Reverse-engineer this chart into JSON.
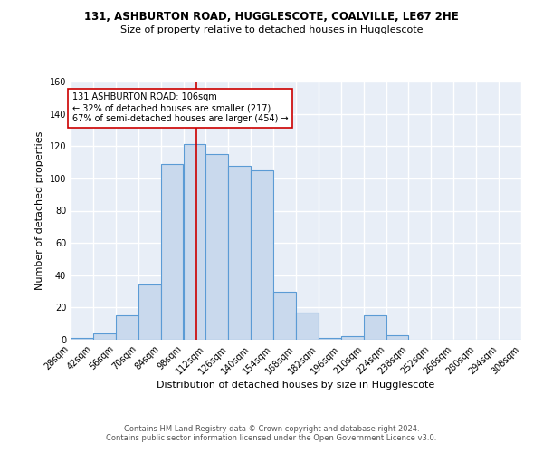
{
  "title1": "131, ASHBURTON ROAD, HUGGLESCOTE, COALVILLE, LE67 2HE",
  "title2": "Size of property relative to detached houses in Hugglescote",
  "xlabel": "Distribution of detached houses by size in Hugglescote",
  "ylabel": "Number of detached properties",
  "footer1": "Contains HM Land Registry data © Crown copyright and database right 2024.",
  "footer2": "Contains public sector information licensed under the Open Government Licence v3.0.",
  "bin_edges": [
    28,
    42,
    56,
    70,
    84,
    98,
    112,
    126,
    140,
    154,
    168,
    182,
    196,
    210,
    224,
    238,
    252,
    266,
    280,
    294,
    308
  ],
  "bin_counts": [
    1,
    4,
    15,
    34,
    109,
    121,
    115,
    108,
    105,
    30,
    17,
    1,
    2,
    15,
    3,
    0,
    0,
    0,
    0,
    0
  ],
  "bar_facecolor": "#c9d9ed",
  "bar_edgecolor": "#5b9bd5",
  "vline_x": 106,
  "vline_color": "#cc0000",
  "annotation_line1": "131 ASHBURTON ROAD: 106sqm",
  "annotation_line2": "← 32% of detached houses are smaller (217)",
  "annotation_line3": "67% of semi-detached houses are larger (454) →",
  "annotation_box_edgecolor": "#cc0000",
  "annotation_box_facecolor": "#ffffff",
  "ylim": [
    0,
    160
  ],
  "yticks": [
    0,
    20,
    40,
    60,
    80,
    100,
    120,
    140,
    160
  ],
  "background_color": "#e8eef7",
  "grid_color": "#ffffff",
  "tick_labels": [
    "28sqm",
    "42sqm",
    "56sqm",
    "70sqm",
    "84sqm",
    "98sqm",
    "112sqm",
    "126sqm",
    "140sqm",
    "154sqm",
    "168sqm",
    "182sqm",
    "196sqm",
    "210sqm",
    "224sqm",
    "238sqm",
    "252sqm",
    "266sqm",
    "280sqm",
    "294sqm",
    "308sqm"
  ]
}
